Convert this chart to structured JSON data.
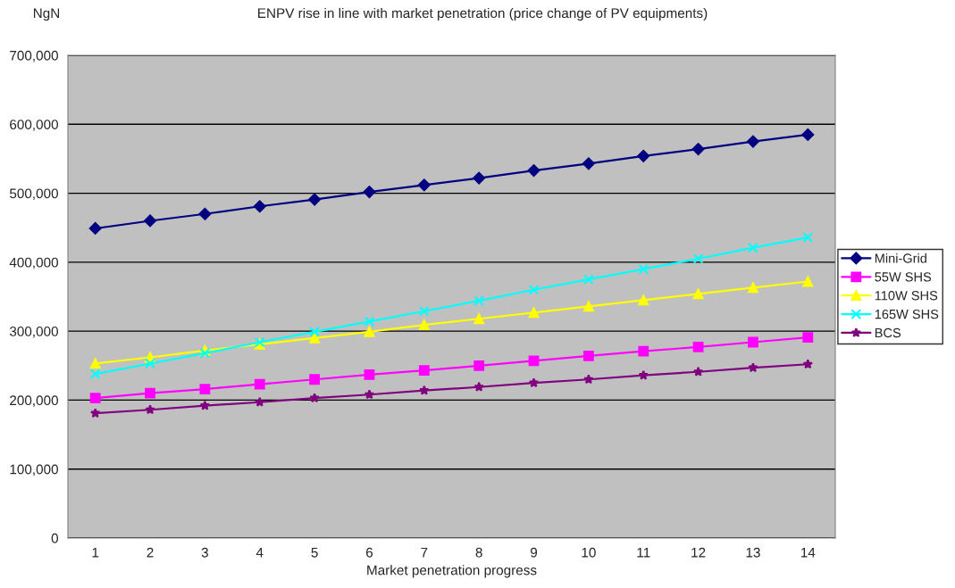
{
  "chart_data": {
    "type": "line",
    "title": "ENPV rise in line with market penetration (price change of PV equipments)",
    "ylabel": "NgN",
    "xlabel": "Market penetration progress",
    "categories": [
      "1",
      "2",
      "3",
      "4",
      "5",
      "6",
      "7",
      "8",
      "9",
      "10",
      "11",
      "12",
      "13",
      "14"
    ],
    "series": [
      {
        "name": "Mini-Grid",
        "color": "#000080",
        "marker": "diamond",
        "values": [
          449000,
          460000,
          470000,
          481000,
          491000,
          502000,
          512000,
          522000,
          533000,
          543000,
          554000,
          564000,
          575000,
          585000
        ]
      },
      {
        "name": "55W SHS",
        "color": "#ff00ff",
        "marker": "square",
        "values": [
          203000,
          210000,
          216000,
          223000,
          230000,
          237000,
          243000,
          250000,
          257000,
          264000,
          271000,
          277000,
          284000,
          291000
        ]
      },
      {
        "name": "110W SHS",
        "color": "#ffff00",
        "marker": "triangle",
        "values": [
          253000,
          262000,
          272000,
          281000,
          290000,
          299000,
          309000,
          318000,
          327000,
          336000,
          345000,
          354000,
          363000,
          372000
        ]
      },
      {
        "name": "165W SHS",
        "color": "#00ffff",
        "marker": "cross",
        "values": [
          238000,
          253000,
          268000,
          284000,
          299000,
          314000,
          329000,
          344000,
          360000,
          375000,
          390000,
          405000,
          421000,
          436000
        ]
      },
      {
        "name": "BCS",
        "color": "#800080",
        "marker": "star",
        "values": [
          181000,
          186000,
          192000,
          197000,
          203000,
          208000,
          214000,
          219000,
          225000,
          230000,
          236000,
          241000,
          247000,
          252000
        ]
      }
    ],
    "ylim": [
      0,
      700000
    ],
    "yticks": [
      {
        "value": 0,
        "label": "0"
      },
      {
        "value": 100000,
        "label": "100,000"
      },
      {
        "value": 200000,
        "label": "200,000"
      },
      {
        "value": 300000,
        "label": "300,000"
      },
      {
        "value": 400000,
        "label": "400,000"
      },
      {
        "value": 500000,
        "label": "500,000"
      },
      {
        "value": 600000,
        "label": "600,000"
      },
      {
        "value": 700000,
        "label": "700,000"
      }
    ],
    "grid": "y",
    "legend": "right",
    "line_style": "solid"
  }
}
